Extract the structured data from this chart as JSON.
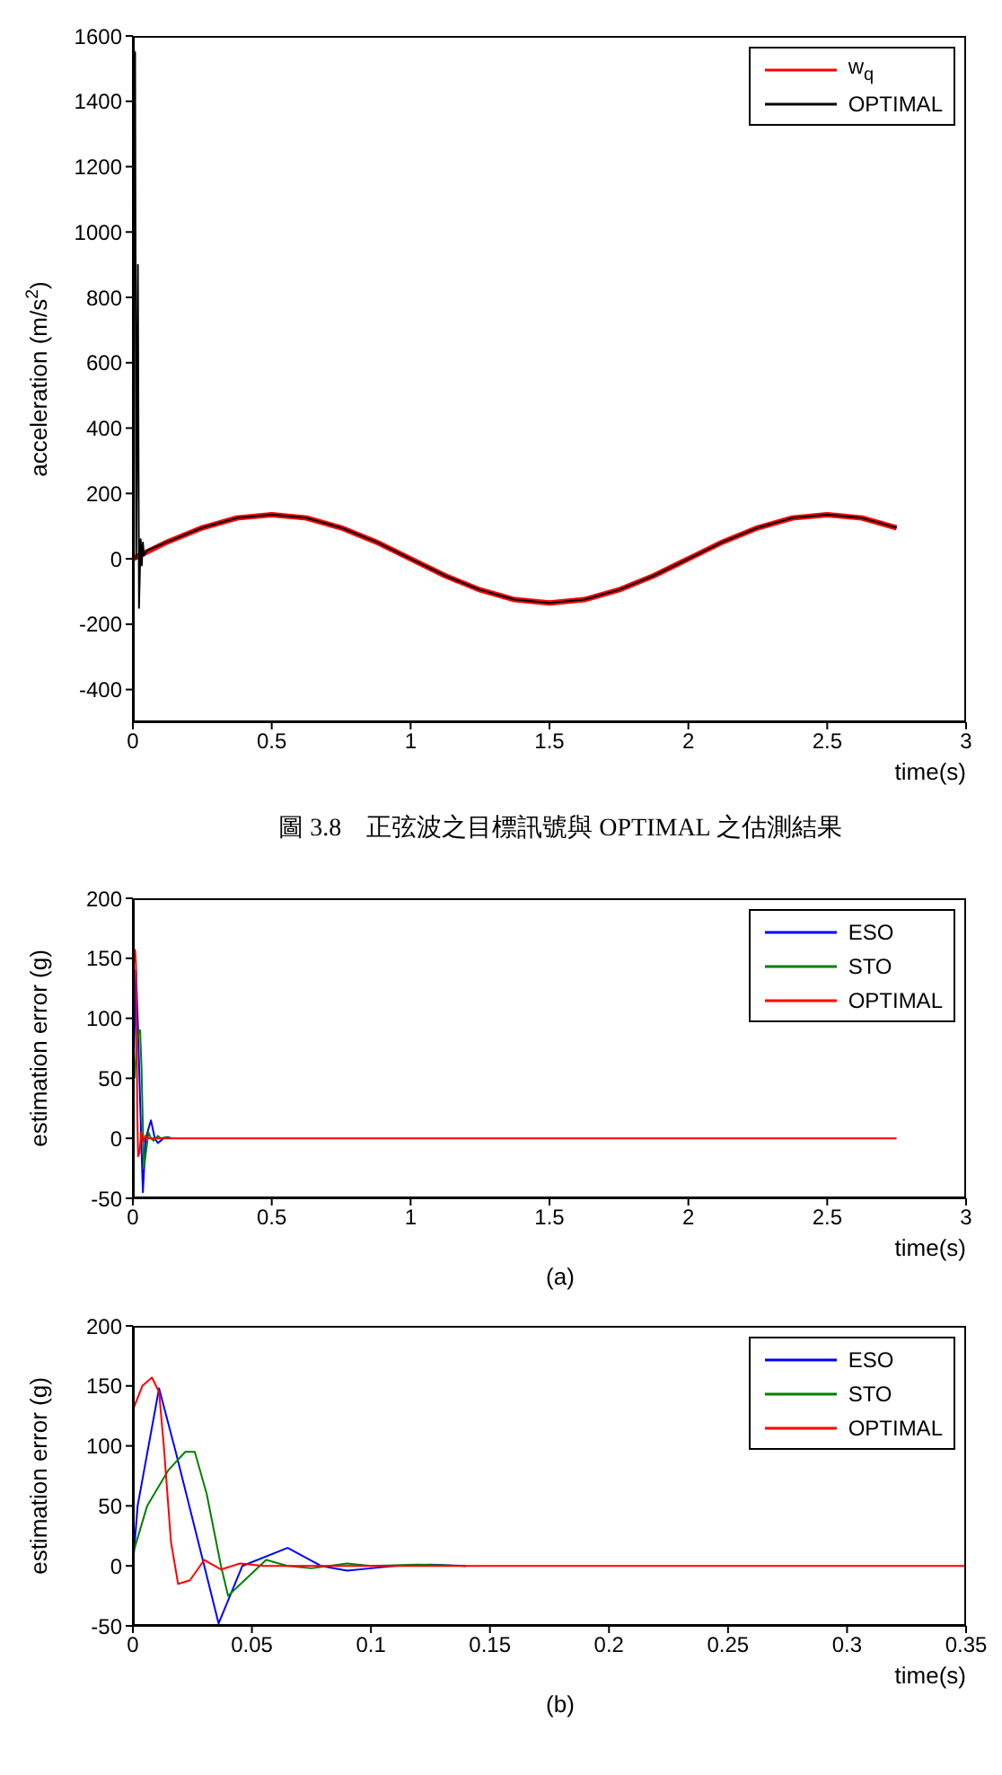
{
  "chart_data": [
    {
      "type": "line",
      "ylabel": "acceleration (m/s$^{2}$)",
      "xlabel": "time(s)",
      "xlim": [
        0,
        3
      ],
      "xticks": [
        0,
        0.5,
        1,
        1.5,
        2,
        2.5,
        3
      ],
      "ylim": [
        -500,
        1600
      ],
      "yticks": [
        -400,
        -200,
        0,
        200,
        400,
        600,
        800,
        1000,
        1200,
        1400,
        1600
      ],
      "grid": false,
      "legend": "top right",
      "marker": "none",
      "series": [
        {
          "name": "w$_{q}$",
          "color": "#ff0000",
          "x": [
            0,
            0.125,
            0.25,
            0.375,
            0.5,
            0.625,
            0.75,
            0.875,
            1,
            1.125,
            1.25,
            1.375,
            1.5,
            1.625,
            1.75,
            1.875,
            2,
            2.125,
            2.25,
            2.375,
            2.5,
            2.625,
            2.75
          ],
          "values": [
            0,
            52,
            95,
            125,
            135,
            125,
            95,
            52,
            0,
            -52,
            -95,
            -125,
            -135,
            -125,
            -95,
            -52,
            0,
            52,
            95,
            125,
            135,
            125,
            95
          ]
        },
        {
          "name": "OPTIMAL",
          "color": "#000000",
          "x": [
            0,
            0.004,
            0.006,
            0.008,
            0.012,
            0.018,
            0.022,
            0.028,
            0.032,
            0.036,
            0.04,
            0.05,
            0.125,
            0.25,
            0.375,
            0.5,
            0.625,
            0.75,
            0.875,
            1,
            1.125,
            1.25,
            1.375,
            1.5,
            1.625,
            1.75,
            1.875,
            2,
            2.125,
            2.25,
            2.375,
            2.5,
            2.625,
            2.75
          ],
          "values": [
            0,
            1560,
            1400,
            1550,
            0,
            900,
            -150,
            60,
            -20,
            50,
            10,
            25,
            52,
            95,
            125,
            135,
            125,
            95,
            52,
            0,
            -52,
            -95,
            -125,
            -135,
            -125,
            -95,
            -52,
            0,
            52,
            95,
            125,
            135,
            125,
            95
          ]
        }
      ],
      "annotations": [
        "圖 3.8　正弦波之目標訊號與 OPTIMAL 之估測結果"
      ]
    },
    {
      "type": "line",
      "ylabel": "estimation error (g)",
      "xlabel": "time(s)",
      "xlim": [
        0,
        3
      ],
      "xticks": [
        0,
        0.5,
        1,
        1.5,
        2,
        2.5,
        3
      ],
      "ylim": [
        -50,
        200
      ],
      "yticks": [
        -50,
        0,
        50,
        100,
        150,
        200
      ],
      "grid": false,
      "legend": "top right",
      "marker": "none",
      "series": [
        {
          "name": "ESO",
          "color": "#0000ff",
          "x": [
            0.002,
            0.011,
            0.018,
            0.03,
            0.036,
            0.046,
            0.065,
            0.079,
            0.09,
            0.1,
            0.11,
            0.125,
            0.14
          ],
          "values": [
            50,
            140,
            95,
            0,
            -45,
            0,
            15,
            0,
            -4,
            -2,
            0,
            1,
            0
          ]
        },
        {
          "name": "STO",
          "color": "#008000",
          "x": [
            0.006,
            0.015,
            0.022,
            0.026,
            0.031,
            0.037,
            0.04,
            0.048,
            0.056,
            0.065,
            0.075,
            0.09,
            0.1,
            0.12,
            0.14
          ],
          "values": [
            50,
            80,
            90,
            90,
            60,
            0,
            -25,
            -10,
            5,
            0,
            -2,
            2,
            0,
            1,
            0
          ]
        },
        {
          "name": "OPTIMAL",
          "color": "#ff0000",
          "x": [
            0,
            0.004,
            0.008,
            0.011,
            0.013,
            0.016,
            0.019,
            0.024,
            0.03,
            0.037,
            0.045,
            0.055,
            2.75
          ],
          "values": [
            130,
            150,
            157,
            145,
            100,
            20,
            -15,
            -12,
            5,
            -3,
            2,
            0,
            0
          ]
        }
      ],
      "annotations": [
        "(a)"
      ]
    },
    {
      "type": "line",
      "ylabel": "estimation error (g)",
      "xlabel": "time(s)",
      "xlim": [
        0,
        0.35
      ],
      "xticks": [
        0,
        0.05,
        0.1,
        0.15,
        0.2,
        0.25,
        0.3,
        0.35
      ],
      "ylim": [
        -50,
        200
      ],
      "yticks": [
        -50,
        0,
        50,
        100,
        150,
        200
      ],
      "grid": false,
      "legend": "top right",
      "marker": "none",
      "series": [
        {
          "name": "ESO",
          "color": "#0000ff",
          "x": [
            0,
            0.002,
            0.011,
            0.018,
            0.03,
            0.036,
            0.046,
            0.065,
            0.079,
            0.09,
            0.1,
            0.11,
            0.125,
            0.14
          ],
          "values": [
            0,
            50,
            148,
            95,
            0,
            -48,
            0,
            15,
            0,
            -4,
            -2,
            0,
            1,
            0
          ]
        },
        {
          "name": "STO",
          "color": "#008000",
          "x": [
            0,
            0.006,
            0.015,
            0.022,
            0.026,
            0.031,
            0.037,
            0.04,
            0.048,
            0.056,
            0.065,
            0.075,
            0.09,
            0.1,
            0.12,
            0.14
          ],
          "values": [
            10,
            50,
            80,
            95,
            95,
            60,
            0,
            -25,
            -10,
            5,
            0,
            -2,
            2,
            0,
            1,
            0
          ]
        },
        {
          "name": "OPTIMAL",
          "color": "#ff0000",
          "x": [
            0,
            0.004,
            0.008,
            0.011,
            0.013,
            0.016,
            0.019,
            0.024,
            0.03,
            0.037,
            0.045,
            0.055,
            0.35
          ],
          "values": [
            130,
            150,
            157,
            145,
            100,
            20,
            -15,
            -12,
            5,
            -3,
            2,
            0,
            0
          ]
        }
      ],
      "annotations": [
        "(b)"
      ]
    }
  ]
}
